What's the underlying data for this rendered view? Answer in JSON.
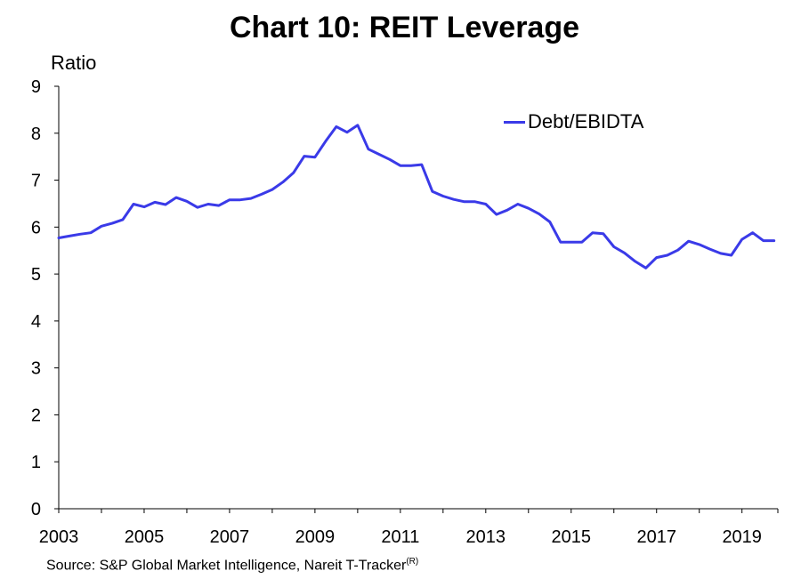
{
  "title": "Chart 10: REIT Leverage",
  "y_axis_label": "Ratio",
  "source": "Source: S&P Global Market Intelligence, Nareit T-Tracker",
  "source_superscript": "(R)",
  "colors": {
    "series": "#3a3ae8",
    "axis": "#000000"
  },
  "chart_data": {
    "type": "line",
    "title": "Chart 10: REIT Leverage",
    "ylabel": "Ratio",
    "xlabel": "",
    "ylim": [
      0,
      9
    ],
    "xlim": [
      2003,
      2019.75
    ],
    "grid": false,
    "legend_position": "top-right",
    "y_ticks": [
      "0",
      "1",
      "2",
      "3",
      "4",
      "5",
      "6",
      "7",
      "8",
      "9"
    ],
    "x_ticks": [
      "2003",
      "2005",
      "2007",
      "2009",
      "2011",
      "2013",
      "2015",
      "2017",
      "2019"
    ],
    "series": [
      {
        "name": "Debt/EBIDTA",
        "x": [
          2003.0,
          2003.25,
          2003.5,
          2003.75,
          2004.0,
          2004.25,
          2004.5,
          2004.75,
          2005.0,
          2005.25,
          2005.5,
          2005.75,
          2006.0,
          2006.25,
          2006.5,
          2006.75,
          2007.0,
          2007.25,
          2007.5,
          2007.75,
          2008.0,
          2008.25,
          2008.5,
          2008.75,
          2009.0,
          2009.25,
          2009.5,
          2009.75,
          2010.0,
          2010.25,
          2010.5,
          2010.75,
          2011.0,
          2011.25,
          2011.5,
          2011.75,
          2012.0,
          2012.25,
          2012.5,
          2012.75,
          2013.0,
          2013.25,
          2013.5,
          2013.75,
          2014.0,
          2014.25,
          2014.5,
          2014.75,
          2015.0,
          2015.25,
          2015.5,
          2015.75,
          2016.0,
          2016.25,
          2016.5,
          2016.75,
          2017.0,
          2017.25,
          2017.5,
          2017.75,
          2018.0,
          2018.25,
          2018.5,
          2018.75,
          2019.0,
          2019.25,
          2019.5,
          2019.75
        ],
        "y": [
          5.77,
          5.81,
          5.85,
          5.88,
          6.02,
          6.08,
          6.16,
          6.49,
          6.43,
          6.53,
          6.48,
          6.63,
          6.55,
          6.42,
          6.49,
          6.46,
          6.58,
          6.58,
          6.61,
          6.7,
          6.8,
          6.96,
          7.16,
          7.51,
          7.49,
          7.83,
          8.14,
          8.02,
          8.17,
          7.66,
          7.55,
          7.44,
          7.31,
          7.31,
          7.33,
          6.76,
          6.66,
          6.59,
          6.54,
          6.54,
          6.49,
          6.27,
          6.36,
          6.49,
          6.4,
          6.28,
          6.11,
          5.68,
          5.68,
          5.68,
          5.88,
          5.86,
          5.58,
          5.45,
          5.27,
          5.13,
          5.35,
          5.4,
          5.51,
          5.7,
          5.63,
          5.53,
          5.44,
          5.4,
          5.74,
          5.88,
          5.71,
          5.71
        ]
      }
    ]
  }
}
